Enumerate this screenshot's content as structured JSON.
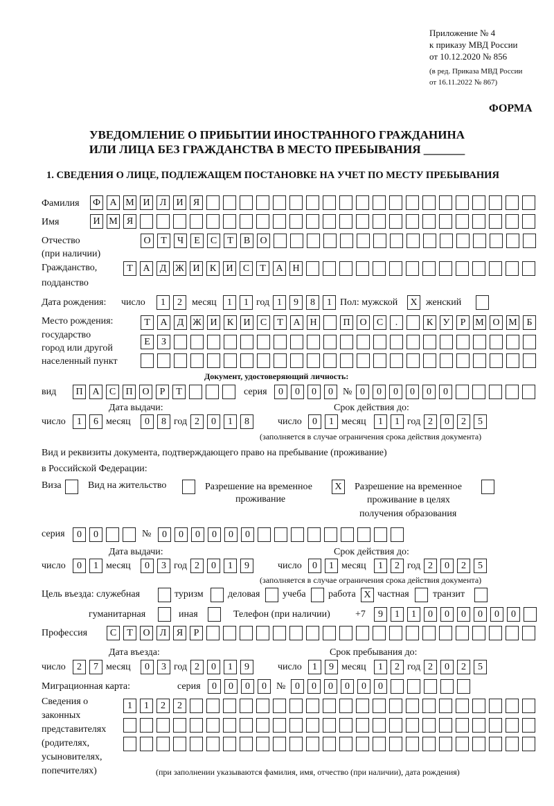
{
  "header": {
    "appendix": "Приложение № 4",
    "order": "к приказу МВД России",
    "order_date": "от 10.12.2020 № 856",
    "edition1": "(в ред. Приказа МВД России",
    "edition2": "от 16.11.2022 № 867)",
    "form": "ФОРМА"
  },
  "title1": "УВЕДОМЛЕНИЕ О ПРИБЫТИИ ИНОСТРАННОГО ГРАЖДАНИНА",
  "title2": "ИЛИ ЛИЦА БЕЗ ГРАЖДАНСТВА В МЕСТО ПРЕБЫВАНИЯ _______",
  "section1": "1. СВЕДЕНИЯ О ЛИЦЕ, ПОДЛЕЖАЩЕМ ПОСТАНОВКЕ НА УЧЕТ ПО МЕСТУ ПРЕБЫВАНИЯ",
  "labels": {
    "surname": "Фамилия",
    "name": "Имя",
    "patronymic": "Отчество",
    "patronymic2": "(при наличии)",
    "citizenship": "Гражданство,",
    "citizenship2": "подданство",
    "birth_date": "Дата рождения:",
    "day": "число",
    "month": "месяц",
    "year": "год",
    "sex": "Пол: мужской",
    "female": "женский",
    "birthplace1": "Место рождения:",
    "birthplace2": "государство",
    "birthplace3": "город или другой",
    "birthplace4": "населенный пункт",
    "id_doc": "Документ, удостоверяющий личность:",
    "kind": "вид",
    "series": "серия",
    "number": "№",
    "issue_date": "Дата выдачи:",
    "valid_until": "Срок действия до:",
    "validity_note": "(заполняется в случае ограничения срока действия документа)",
    "right_doc1": "Вид и реквизиты документа, подтверждающего право на пребывание (проживание)",
    "right_doc2": "в Российской Федерации:",
    "visa": "Виза",
    "residence": "Вид на жительство",
    "trp1": "Разрешение на временное",
    "trp2": "проживание",
    "trpe1": "Разрешение на временное",
    "trpe2": "проживание в целях",
    "trpe3": "получения образования",
    "purpose": "Цель въезда: служебная",
    "tourism": "туризм",
    "business": "деловая",
    "study": "учеба",
    "work": "работа",
    "private": "частная",
    "transit": "транзит",
    "humanitarian": "гуманитарная",
    "other": "иная",
    "phone": "Телефон (при наличии)",
    "phone_prefix": "+7",
    "profession": "Профессия",
    "entry_date": "Дата въезда:",
    "stay_until": "Срок пребывания до:",
    "migration_card": "Миграционная карта:",
    "reps1": "Сведения о",
    "reps2": "законных",
    "reps3": "представителях",
    "reps4": "(родителях,",
    "reps5": "усыновителях,",
    "reps6": "попечителях)",
    "reps_note": "(при заполнении указываются фамилия, имя, отчество (при наличии), дата рождения)"
  },
  "values": {
    "surname": "ФАМИЛИЯ",
    "name": "ИМЯ",
    "patronymic": "ОТЧЕСТВО",
    "citizenship": "ТАДЖИКИСТАН",
    "birth_day": "12",
    "birth_month": "11",
    "birth_year": "1981",
    "sex_male": "X",
    "sex_female": "",
    "birthplace1": "ТАДЖИКИСТАН ПОС. КУРМОМБ",
    "birthplace2": "ЕЗ",
    "birthplace3": "",
    "id_kind": "ПАСПОРТ",
    "id_series": "0000",
    "id_number": "000000",
    "id_issue_day": "16",
    "id_issue_month": "08",
    "id_issue_year": "2018",
    "id_valid_day": "01",
    "id_valid_month": "11",
    "id_valid_year": "2025",
    "visa": "",
    "residence": "",
    "trp": "X",
    "trpe": "",
    "rd_series": "00",
    "rd_number": "000000",
    "rd_issue_day": "01",
    "rd_issue_month": "03",
    "rd_issue_year": "2019",
    "rd_valid_day": "01",
    "rd_valid_month": "12",
    "rd_valid_year": "2025",
    "purpose_service": "",
    "purpose_tourism": "",
    "purpose_business": "",
    "purpose_study": "",
    "purpose_work": "X",
    "purpose_private": "",
    "purpose_transit": "",
    "purpose_humanitarian": "",
    "purpose_other": "",
    "phone": "911000000",
    "profession": "СТОЛЯР",
    "entry_day": "27",
    "entry_month": "03",
    "entry_year": "2019",
    "stay_day": "19",
    "stay_month": "12",
    "stay_year": "2025",
    "mc_series": "0000",
    "mc_number": "000000",
    "reps1": "1122",
    "reps2": "",
    "reps3": ""
  }
}
